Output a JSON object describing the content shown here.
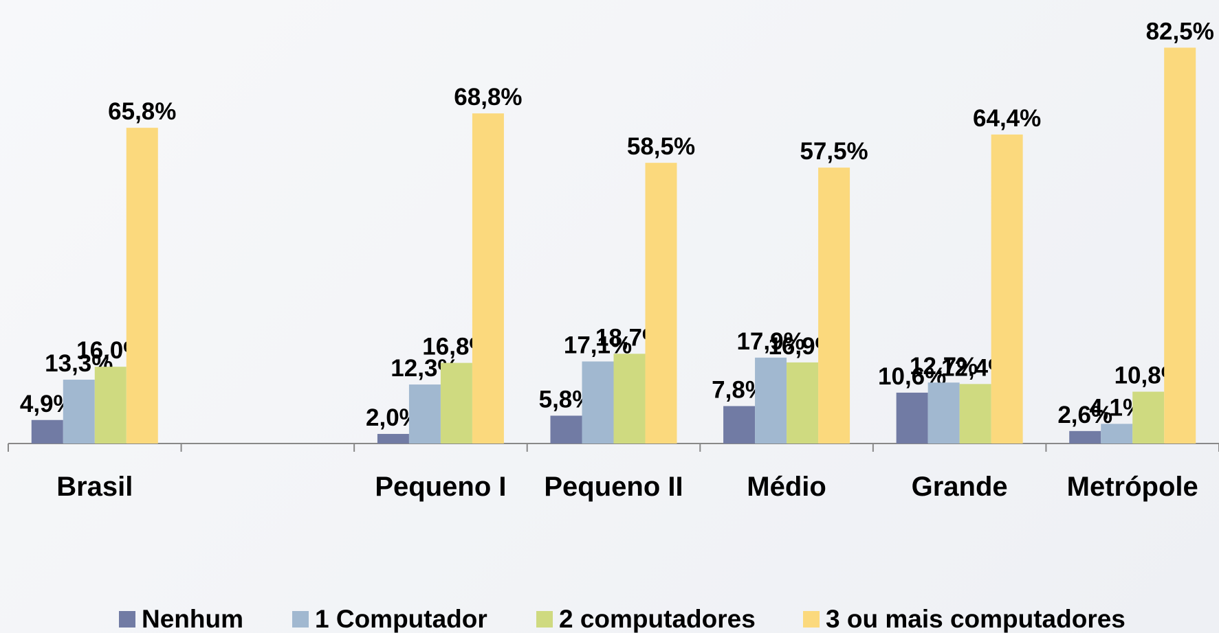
{
  "chart_data": {
    "type": "bar",
    "categories": [
      "Brasil",
      null,
      "Pequeno I",
      "Pequeno II",
      "Médio",
      "Grande",
      "Metrópole"
    ],
    "series": [
      {
        "name": "Nenhum",
        "color": "#717ba4",
        "values": [
          4.9,
          null,
          2.0,
          5.8,
          7.8,
          10.6,
          2.6
        ],
        "value_labels": [
          "4,9%",
          null,
          "2,0%",
          "5,8%",
          "7,8%",
          "10,6%",
          "2,6%"
        ]
      },
      {
        "name": "1 Computador",
        "color": "#a1b8d0",
        "values": [
          13.3,
          null,
          12.3,
          17.1,
          17.9,
          12.7,
          4.1
        ],
        "value_labels": [
          "13,3%",
          null,
          "12,3%",
          "17,1%",
          "17,9%",
          "12,7%",
          "4,1%"
        ]
      },
      {
        "name": "2 computadores",
        "color": "#cfda80",
        "values": [
          16.0,
          null,
          16.8,
          18.7,
          16.9,
          12.4,
          10.8
        ],
        "value_labels": [
          "16,0%",
          null,
          "16,8%",
          "18,7%",
          "16,9%",
          "12,4%",
          "10,8%"
        ]
      },
      {
        "name": "3 ou mais computadores",
        "color": "#fbd97d",
        "values": [
          65.8,
          null,
          68.8,
          58.5,
          57.5,
          64.4,
          82.5
        ],
        "value_labels": [
          "65,8%",
          null,
          "68,8%",
          "58,5%",
          "57,5%",
          "64,4%",
          "82,5%"
        ]
      }
    ],
    "ylim": [
      0,
      90
    ],
    "legend": "bottom"
  }
}
